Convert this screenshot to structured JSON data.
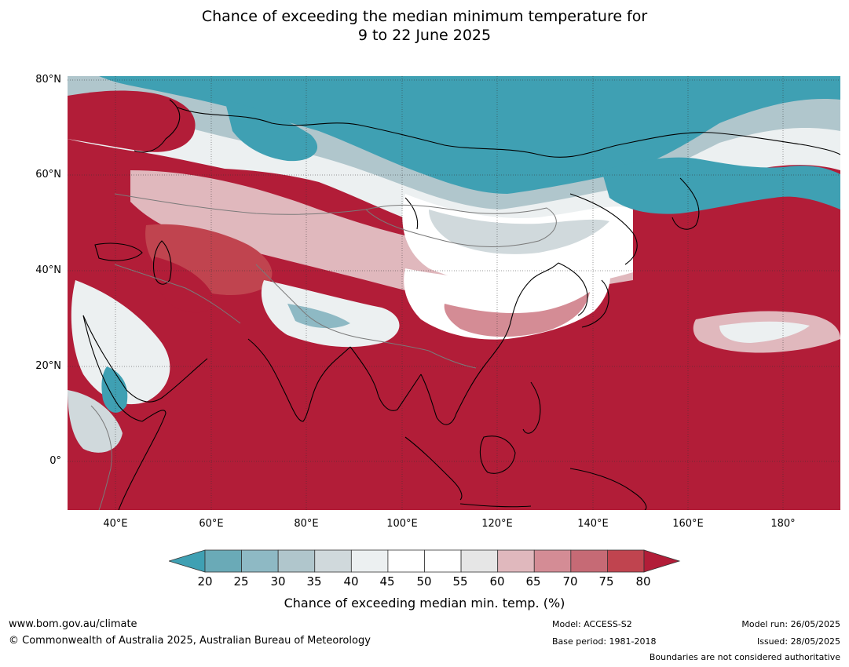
{
  "title": {
    "line1": "Chance of exceeding the median minimum temperature for",
    "line2": "9 to 22 June 2025"
  },
  "map": {
    "lat_labels": [
      "80°N",
      "60°N",
      "40°N",
      "20°N",
      "0°"
    ],
    "lon_labels": [
      "40°E",
      "60°E",
      "80°E",
      "100°E",
      "120°E",
      "140°E",
      "160°E",
      "180°"
    ],
    "lat_range": [
      -10,
      80
    ],
    "lon_range": [
      30,
      192
    ],
    "colors": {
      "below_20": "#3fa0b3",
      "20_25": "#6aaab7",
      "25_30": "#8eb9c4",
      "30_35": "#b0c6cc",
      "35_40": "#d0d9dc",
      "40_45": "#ecf0f1",
      "45_55": "#ffffff",
      "55_60": "#e6e6e6",
      "60_65": "#e0b8bd",
      "65_70": "#d48c95",
      "70_75": "#c66a75",
      "75_80": "#c0444f",
      "above_80": "#b21d38"
    }
  },
  "colorbar": {
    "ticks": [
      "20",
      "25",
      "30",
      "35",
      "40",
      "45",
      "50",
      "55",
      "60",
      "65",
      "70",
      "75",
      "80"
    ],
    "bins": [
      "#6aaab7",
      "#8eb9c4",
      "#b0c6cc",
      "#d0d9dc",
      "#ecf0f1",
      "#ffffff",
      "#ffffff",
      "#e6e6e6",
      "#e0b8bd",
      "#d48c95",
      "#c66a75",
      "#c0444f"
    ],
    "low_color": "#3fa0b3",
    "high_color": "#b21d38",
    "label": "Chance of exceeding median min. temp. (%)"
  },
  "footer": {
    "website": "www.bom.gov.au/climate",
    "copyright": "© Commonwealth of Australia 2025, Australian Bureau of Meteorology",
    "model": "Model: ACCESS-S2",
    "base_period": "Base period: 1981-2018",
    "model_run": "Model run: 26/05/2025",
    "issued": "Issued: 28/05/2025",
    "disclaimer": "Boundaries are not considered authoritative"
  }
}
